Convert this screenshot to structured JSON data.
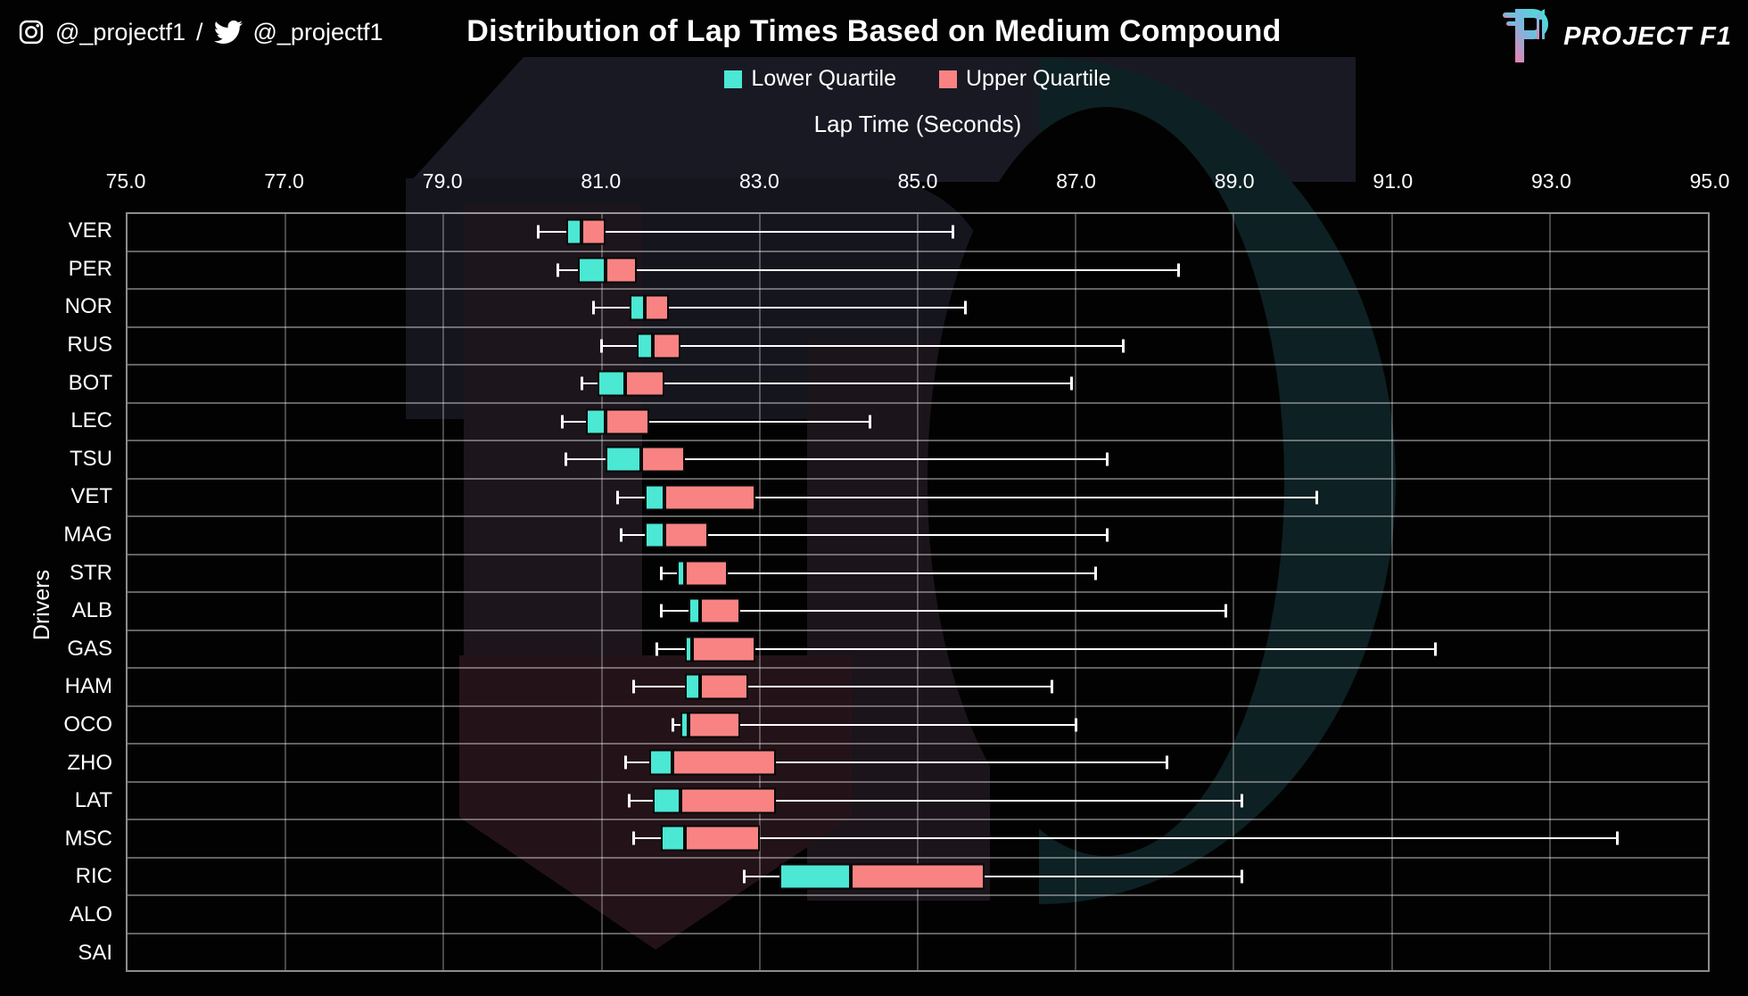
{
  "header": {
    "instagram_handle": "@_projectf1",
    "separator": "/",
    "twitter_handle": "@_projectf1",
    "title": "Distribution of Lap Times Based on Medium Compound",
    "brand_name": "PROJECT F1"
  },
  "legend": [
    {
      "label": "Lower Quartile",
      "color": "#4BE8D4"
    },
    {
      "label": "Upper Quartile",
      "color": "#F98383"
    }
  ],
  "axes": {
    "x_title": "Lap Time (Seconds)",
    "y_title": "Drivers",
    "x_ticks": [
      "75.0",
      "77.0",
      "79.0",
      "81.0",
      "83.0",
      "85.0",
      "87.0",
      "89.0",
      "91.0",
      "93.0",
      "95.0"
    ]
  },
  "chart_data": {
    "type": "boxplot-horizontal",
    "title": "Distribution of Lap Times Based on Medium Compound",
    "xlabel": "Lap Time (Seconds)",
    "ylabel": "Drivers",
    "xlim": [
      75.0,
      95.0
    ],
    "x_tick_step": 2.0,
    "grid": true,
    "legend_position": "top-center",
    "colors": {
      "lower_quartile": "#4BE8D4",
      "upper_quartile": "#F98383",
      "whisker": "#FFFFFF"
    },
    "boxes": [
      {
        "driver": "VER",
        "whisker_low": 80.2,
        "q1": 80.55,
        "median": 80.75,
        "q3": 81.05,
        "whisker_high": 85.45
      },
      {
        "driver": "PER",
        "whisker_low": 80.45,
        "q1": 80.7,
        "median": 81.05,
        "q3": 81.45,
        "whisker_high": 88.3
      },
      {
        "driver": "NOR",
        "whisker_low": 80.9,
        "q1": 81.35,
        "median": 81.55,
        "q3": 81.85,
        "whisker_high": 85.6
      },
      {
        "driver": "RUS",
        "whisker_low": 81.0,
        "q1": 81.45,
        "median": 81.65,
        "q3": 82.0,
        "whisker_high": 87.6
      },
      {
        "driver": "BOT",
        "whisker_low": 80.75,
        "q1": 80.95,
        "median": 81.3,
        "q3": 81.8,
        "whisker_high": 86.95
      },
      {
        "driver": "LEC",
        "whisker_low": 80.5,
        "q1": 80.8,
        "median": 81.05,
        "q3": 81.6,
        "whisker_high": 84.4
      },
      {
        "driver": "TSU",
        "whisker_low": 80.55,
        "q1": 81.05,
        "median": 81.5,
        "q3": 82.05,
        "whisker_high": 87.4
      },
      {
        "driver": "VET",
        "whisker_low": 81.2,
        "q1": 81.55,
        "median": 81.8,
        "q3": 82.95,
        "whisker_high": 90.05
      },
      {
        "driver": "MAG",
        "whisker_low": 81.25,
        "q1": 81.55,
        "median": 81.8,
        "q3": 82.35,
        "whisker_high": 87.4
      },
      {
        "driver": "STR",
        "whisker_low": 81.75,
        "q1": 81.95,
        "median": 82.05,
        "q3": 82.6,
        "whisker_high": 87.25
      },
      {
        "driver": "ALB",
        "whisker_low": 81.75,
        "q1": 82.1,
        "median": 82.25,
        "q3": 82.75,
        "whisker_high": 88.9
      },
      {
        "driver": "GAS",
        "whisker_low": 81.7,
        "q1": 82.05,
        "median": 82.15,
        "q3": 82.95,
        "whisker_high": 91.55
      },
      {
        "driver": "HAM",
        "whisker_low": 81.4,
        "q1": 82.05,
        "median": 82.25,
        "q3": 82.85,
        "whisker_high": 86.7
      },
      {
        "driver": "OCO",
        "whisker_low": 81.9,
        "q1": 82.0,
        "median": 82.1,
        "q3": 82.75,
        "whisker_high": 87.0
      },
      {
        "driver": "ZHO",
        "whisker_low": 81.3,
        "q1": 81.6,
        "median": 81.9,
        "q3": 83.2,
        "whisker_high": 88.15
      },
      {
        "driver": "LAT",
        "whisker_low": 81.35,
        "q1": 81.65,
        "median": 82.0,
        "q3": 83.2,
        "whisker_high": 89.1
      },
      {
        "driver": "MSC",
        "whisker_low": 81.4,
        "q1": 81.75,
        "median": 82.05,
        "q3": 83.0,
        "whisker_high": 93.85
      },
      {
        "driver": "RIC",
        "whisker_low": 82.8,
        "q1": 83.25,
        "median": 84.15,
        "q3": 85.85,
        "whisker_high": 89.1
      },
      {
        "driver": "ALO",
        "whisker_low": null,
        "q1": null,
        "median": null,
        "q3": null,
        "whisker_high": null
      },
      {
        "driver": "SAI",
        "whisker_low": null,
        "q1": null,
        "median": null,
        "q3": null,
        "whisker_high": null
      }
    ]
  }
}
